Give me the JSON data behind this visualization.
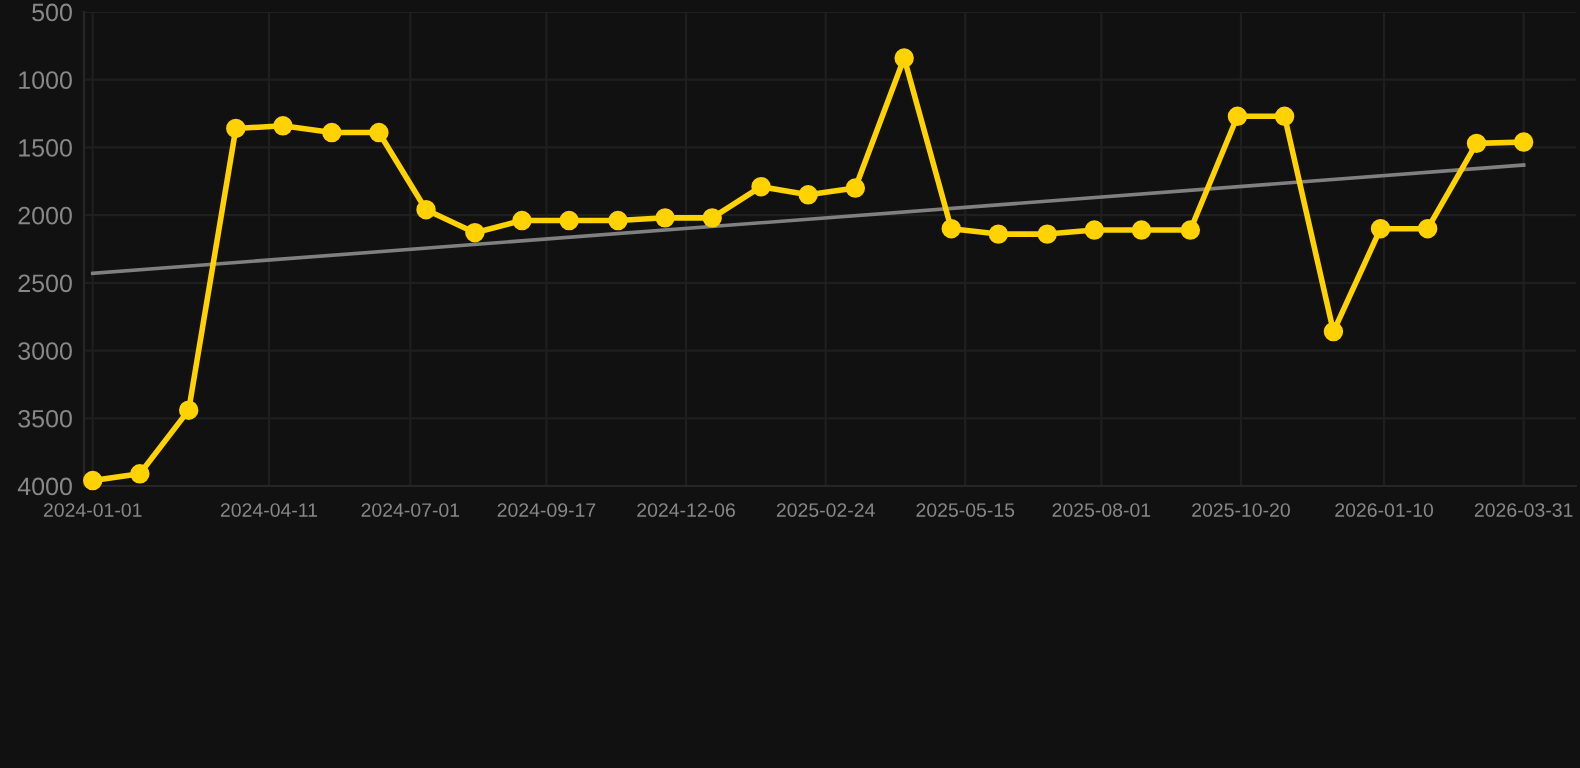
{
  "chart_data": {
    "type": "line",
    "ylim": [
      4000,
      500
    ],
    "yticks": [
      500,
      1000,
      1500,
      2000,
      2500,
      3000,
      3500,
      4000
    ],
    "xlim": [
      "2023-12-27",
      "2026-04-30"
    ],
    "xticks": [
      {
        "value": "2024-01-01",
        "label": "2024-01-01"
      },
      {
        "value": "2024-04-11",
        "label": "2024-04-11"
      },
      {
        "value": "2024-07-01",
        "label": "2024-07-01"
      },
      {
        "value": "2024-09-17",
        "label": "2024-09-17"
      },
      {
        "value": "2024-12-06",
        "label": "2024-12-06"
      },
      {
        "value": "2025-02-24",
        "label": "2025-02-24"
      },
      {
        "value": "2025-05-15",
        "label": "2025-05-15"
      },
      {
        "value": "2025-08-01",
        "label": "2025-08-01"
      },
      {
        "value": "2025-10-20",
        "label": "2025-10-20"
      },
      {
        "value": "2026-01-10",
        "label": "2026-01-10"
      },
      {
        "value": "2026-03-31",
        "label": "2026-03-31"
      }
    ],
    "grid": true,
    "marker": "circle",
    "line_style": "solid",
    "series": [
      {
        "color": "#ffd200",
        "x": [
          "2024-01-01",
          "2024-01-28",
          "2024-02-25",
          "2024-03-23",
          "2024-04-19",
          "2024-05-17",
          "2024-06-13",
          "2024-07-10",
          "2024-08-07",
          "2024-09-03",
          "2024-09-30",
          "2024-10-28",
          "2024-11-24",
          "2024-12-21",
          "2025-01-18",
          "2025-02-14",
          "2025-03-13",
          "2025-04-10",
          "2025-05-07",
          "2025-06-03",
          "2025-07-01",
          "2025-07-28",
          "2025-08-24",
          "2025-09-21",
          "2025-10-18",
          "2025-11-14",
          "2025-12-12",
          "2026-01-08",
          "2026-02-04",
          "2026-03-04",
          "2026-03-31"
        ],
        "values": [
          3960,
          3910,
          3440,
          1360,
          1340,
          1390,
          1390,
          1960,
          2130,
          2040,
          2040,
          2040,
          2020,
          2020,
          1790,
          1850,
          1800,
          840,
          2100,
          2140,
          2140,
          2110,
          2110,
          2110,
          1270,
          1270,
          2860,
          2100,
          2100,
          1470,
          1460
        ]
      },
      {
        "type": "line",
        "color": "#808080",
        "marker": "none",
        "x": [
          "2024-01-01",
          "2026-03-31"
        ],
        "values": [
          2430,
          1630
        ]
      }
    ]
  }
}
